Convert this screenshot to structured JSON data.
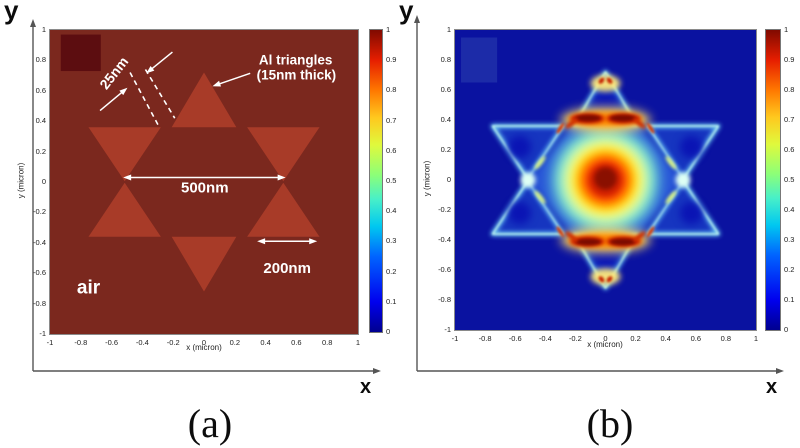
{
  "page": {
    "background": "#ffffff"
  },
  "colormap": {
    "name": "jet",
    "stops": [
      [
        "#00008F",
        0
      ],
      [
        "#0000EE",
        10
      ],
      [
        "#0064FF",
        25
      ],
      [
        "#00C8F0",
        35
      ],
      [
        "#48F0C8",
        44
      ],
      [
        "#8CFF78",
        52
      ],
      [
        "#E0F93C",
        62
      ],
      [
        "#FFC81E",
        71
      ],
      [
        "#FF7800",
        80
      ],
      [
        "#E61E00",
        90
      ],
      [
        "#800A00",
        100
      ]
    ]
  },
  "chart_data": [
    {
      "id": "a",
      "type": "heatmap",
      "caption": "(a)",
      "outer_axis": {
        "x": "x",
        "y": "y"
      },
      "xlabel": "x (micron)",
      "ylabel": "y (micron)",
      "xlim": [
        -1,
        1
      ],
      "ylim": [
        -1,
        1
      ],
      "x_ticks": [
        "-1",
        "-0.8",
        "-0.6",
        "-0.4",
        "-0.2",
        "0",
        "0.2",
        "0.4",
        "0.6",
        "0.8",
        "1"
      ],
      "y_ticks": [
        "1",
        "0.8",
        "0.6",
        "0.4",
        "0.2",
        "0",
        "-0.2",
        "-0.4",
        "-0.6",
        "-0.8",
        "-1"
      ],
      "colorbar_ticks": [
        "1",
        "0.9",
        "0.8",
        "0.7",
        "0.6",
        "0.5",
        "0.4",
        "0.3",
        "0.2",
        "0.1",
        "0"
      ],
      "value_range": [
        0,
        1
      ],
      "colors": {
        "background": "#7B281E",
        "triangle": "#A83B28",
        "corner_patch": "#5C0D10",
        "annotation": "#FFFFFF"
      },
      "corner_patch": {
        "x0": -0.93,
        "x1": -0.67,
        "y0": 0.73,
        "y1": 0.97
      },
      "triangles": [
        [
          [
            -0.21,
            0.36
          ],
          [
            0.21,
            0.36
          ],
          [
            0,
            0.72
          ]
        ],
        [
          [
            -0.21,
            -0.36
          ],
          [
            0.21,
            -0.36
          ],
          [
            0,
            -0.72
          ]
        ],
        [
          [
            -0.75,
            0.36
          ],
          [
            -0.28,
            0.36
          ],
          [
            -0.515,
            0.005
          ]
        ],
        [
          [
            -0.75,
            -0.36
          ],
          [
            -0.28,
            -0.36
          ],
          [
            -0.515,
            -0.005
          ]
        ],
        [
          [
            0.28,
            0.36
          ],
          [
            0.75,
            0.36
          ],
          [
            0.515,
            0.005
          ]
        ],
        [
          [
            0.28,
            -0.36
          ],
          [
            0.75,
            -0.36
          ],
          [
            0.515,
            -0.005
          ]
        ]
      ],
      "annotations": {
        "texts": [
          {
            "text": "25nm",
            "x": -0.56,
            "y": 0.73,
            "size": 14,
            "rot": -52
          },
          {
            "text": "Al triangles",
            "x": 0.595,
            "y": 0.805,
            "size": 13.5,
            "rot": 0
          },
          {
            "text": "(15nm thick)",
            "x": 0.6,
            "y": 0.705,
            "size": 13.5,
            "rot": 0
          },
          {
            "text": "500nm",
            "x": 0.005,
            "y": -0.035,
            "size": 15,
            "rot": 0
          },
          {
            "text": "200nm",
            "x": 0.54,
            "y": -0.565,
            "size": 15,
            "rot": 0
          },
          {
            "text": "air",
            "x": -0.75,
            "y": -0.69,
            "size": 19,
            "rot": 0
          }
        ],
        "dashed_lines": [
          {
            "from": [
              -0.48,
              0.72
            ],
            "to": [
              -0.29,
              0.36
            ]
          },
          {
            "from": [
              -0.38,
              0.74
            ],
            "to": [
              -0.19,
              0.42
            ]
          }
        ],
        "arrows": [
          {
            "from": [
              -0.675,
              0.47
            ],
            "to": [
              -0.497,
              0.62
            ]
          },
          {
            "from": [
              -0.205,
              0.855
            ],
            "to": [
              -0.375,
              0.715
            ]
          },
          {
            "from": [
              0.3,
              0.715
            ],
            "to": [
              0.055,
              0.63
            ]
          }
        ],
        "double_arrows": [
          {
            "from": [
              -0.525,
              0.03
            ],
            "to": [
              0.53,
              0.03
            ]
          },
          {
            "from": [
              0.345,
              -0.39
            ],
            "to": [
              0.735,
              -0.39
            ]
          }
        ]
      },
      "description": "Schematic: six Al triangles (200nm edge, 15nm thick, 25nm gaps, 500nm across) forming a Star-of-David pattern in air; uniform map value 1 (dark red)."
    },
    {
      "id": "b",
      "type": "heatmap",
      "caption": "(b)",
      "outer_axis": {
        "x": "x",
        "y": "y"
      },
      "xlabel": "x (micron)",
      "ylabel": "y (micron)",
      "xlim": [
        -1,
        1
      ],
      "ylim": [
        -1,
        1
      ],
      "x_ticks": [
        "-1",
        "-0.8",
        "-0.6",
        "-0.4",
        "-0.2",
        "0",
        "0.2",
        "0.4",
        "0.6",
        "0.8",
        "1"
      ],
      "y_ticks": [
        "1",
        "0.8",
        "0.6",
        "0.4",
        "0.2",
        "0",
        "-0.2",
        "-0.4",
        "-0.6",
        "-0.8",
        "-1"
      ],
      "colorbar_ticks": [
        "1",
        "0.9",
        "0.8",
        "0.7",
        "0.6",
        "0.5",
        "0.4",
        "0.3",
        "0.2",
        "0.1",
        "0"
      ],
      "value_range": [
        0,
        1
      ],
      "colors": {
        "background": "#0A12A0",
        "corner_patch": "#1C2BA8",
        "star_fill": "#1635C0",
        "edge_glow": "#6FD0F8",
        "edge_bright": "#C8FBF0",
        "inner_hex": "#2B5CDE"
      },
      "corner_patch": {
        "x0": -0.96,
        "x1": -0.72,
        "y0": 0.65,
        "y1": 0.95
      },
      "triangles": [
        [
          [
            -0.21,
            0.36
          ],
          [
            0.21,
            0.36
          ],
          [
            0,
            0.72
          ]
        ],
        [
          [
            -0.21,
            -0.36
          ],
          [
            0.21,
            -0.36
          ],
          [
            0,
            -0.72
          ]
        ],
        [
          [
            -0.75,
            0.36
          ],
          [
            -0.28,
            0.36
          ],
          [
            -0.515,
            0.005
          ]
        ],
        [
          [
            -0.75,
            -0.36
          ],
          [
            -0.28,
            -0.36
          ],
          [
            -0.515,
            -0.005
          ]
        ],
        [
          [
            0.28,
            0.36
          ],
          [
            0.75,
            0.36
          ],
          [
            0.515,
            0.005
          ]
        ],
        [
          [
            0.28,
            -0.36
          ],
          [
            0.75,
            -0.36
          ],
          [
            0.515,
            -0.005
          ]
        ]
      ],
      "hotspots": [
        {
          "x": 0,
          "y": 0,
          "value": 1.0,
          "note": "central circular hot spot"
        },
        {
          "x": 0,
          "y": 0.4,
          "value": 1.0,
          "note": "double-lobed red arc at inner base of top triangle"
        },
        {
          "x": 0,
          "y": -0.4,
          "value": 1.0,
          "note": "double-lobed red arc at inner base of bottom triangle"
        },
        {
          "x": 0,
          "y": 0.66,
          "value": 0.85,
          "note": "spot near top star apex"
        },
        {
          "x": 0,
          "y": -0.66,
          "value": 0.85,
          "note": "spot near bottom star apex"
        },
        {
          "x": -0.51,
          "y": 0,
          "value": 0.5,
          "note": "bright pinch at left bowtie crossing"
        },
        {
          "x": 0.51,
          "y": 0,
          "value": 0.5,
          "note": "bright pinch at right bowtie crossing"
        }
      ],
      "features": [
        {
          "shape": "polygon",
          "points": [
            [
              -0.245,
              0.355
            ],
            [
              0.245,
              0.355
            ],
            [
              0.525,
              0
            ],
            [
              0.245,
              -0.355
            ],
            [
              -0.245,
              -0.355
            ],
            [
              -0.525,
              0
            ]
          ],
          "color": "#2B5CDE",
          "blur": 4,
          "opacity": 0.9
        },
        {
          "shape": "circle",
          "cx": 0,
          "cy": 0.5,
          "r": 0.085,
          "color": "#0A14B4",
          "blur": 4,
          "opacity": 1
        },
        {
          "shape": "circle",
          "cx": 0,
          "cy": -0.5,
          "r": 0.085,
          "color": "#0A14B4",
          "blur": 4,
          "opacity": 1
        },
        {
          "shape": "circle",
          "cx": -0.57,
          "cy": 0.22,
          "r": 0.075,
          "color": "#0A14B4",
          "blur": 4,
          "opacity": 1
        },
        {
          "shape": "circle",
          "cx": -0.57,
          "cy": -0.22,
          "r": 0.075,
          "color": "#0A14B4",
          "blur": 4,
          "opacity": 1
        },
        {
          "shape": "circle",
          "cx": 0.57,
          "cy": 0.22,
          "r": 0.075,
          "color": "#0A14B4",
          "blur": 4,
          "opacity": 1
        },
        {
          "shape": "circle",
          "cx": 0.57,
          "cy": -0.22,
          "r": 0.075,
          "color": "#0A14B4",
          "blur": 4,
          "opacity": 1
        },
        {
          "shape": "circle",
          "cx": 0,
          "cy": 0,
          "r": 0.355,
          "color": "#7FFFD4",
          "blur": 7,
          "opacity": 0.8
        },
        {
          "shape": "circle",
          "cx": 0,
          "cy": 0,
          "r": 0.29,
          "color": "#D9FFAE",
          "blur": 6,
          "opacity": 0.95
        },
        {
          "shape": "circle",
          "cx": 0,
          "cy": 0,
          "r": 0.24,
          "color": "#FFEE4E",
          "blur": 5,
          "opacity": 1
        },
        {
          "shape": "circle",
          "cx": 0,
          "cy": 0,
          "r": 0.195,
          "color": "#FFAE00",
          "blur": 4,
          "opacity": 1
        },
        {
          "shape": "circle",
          "cx": 0,
          "cy": 0,
          "r": 0.155,
          "color": "#FF5A00",
          "blur": 3.5,
          "opacity": 1
        },
        {
          "shape": "circle",
          "cx": 0,
          "cy": 0,
          "r": 0.115,
          "color": "#D22000",
          "blur": 3,
          "opacity": 1
        },
        {
          "shape": "circle",
          "cx": 0,
          "cy": 0.01,
          "r": 0.075,
          "color": "#8A1000",
          "blur": 2.5,
          "opacity": 1
        },
        {
          "shape": "ellipse",
          "cx": 0,
          "cy": 0.4,
          "rx": 0.3,
          "ry": 0.085,
          "rot": 0,
          "color": "#FFE06A",
          "blur": 5,
          "opacity": 0.9
        },
        {
          "shape": "ellipse",
          "cx": 0,
          "cy": 0.405,
          "rx": 0.25,
          "ry": 0.05,
          "rot": 0,
          "color": "#FF8C00",
          "blur": 3,
          "opacity": 1
        },
        {
          "shape": "ellipse",
          "cx": -0.12,
          "cy": 0.41,
          "rx": 0.115,
          "ry": 0.034,
          "rot": 0,
          "color": "#C81800",
          "blur": 2,
          "opacity": 1
        },
        {
          "shape": "ellipse",
          "cx": 0.12,
          "cy": 0.41,
          "rx": 0.115,
          "ry": 0.034,
          "rot": 0,
          "color": "#C81800",
          "blur": 2,
          "opacity": 1
        },
        {
          "shape": "ellipse",
          "cx": -0.115,
          "cy": 0.413,
          "rx": 0.085,
          "ry": 0.022,
          "rot": 0,
          "color": "#7A0C00",
          "blur": 1.5,
          "opacity": 1
        },
        {
          "shape": "ellipse",
          "cx": 0.115,
          "cy": 0.413,
          "rx": 0.085,
          "ry": 0.022,
          "rot": 0,
          "color": "#7A0C00",
          "blur": 1.5,
          "opacity": 1
        },
        {
          "shape": "ellipse",
          "cx": -0.225,
          "cy": 0.378,
          "rx": 0.05,
          "ry": 0.016,
          "rot": -38,
          "color": "#D03000",
          "blur": 1.5,
          "opacity": 1
        },
        {
          "shape": "ellipse",
          "cx": 0.225,
          "cy": 0.378,
          "rx": 0.05,
          "ry": 0.016,
          "rot": 38,
          "color": "#D03000",
          "blur": 1.5,
          "opacity": 1
        },
        {
          "shape": "ellipse",
          "cx": 0,
          "cy": -0.4,
          "rx": 0.3,
          "ry": 0.085,
          "rot": 0,
          "color": "#FFE06A",
          "blur": 5,
          "opacity": 0.9
        },
        {
          "shape": "ellipse",
          "cx": 0,
          "cy": -0.405,
          "rx": 0.25,
          "ry": 0.05,
          "rot": 0,
          "color": "#FF8C00",
          "blur": 3,
          "opacity": 1
        },
        {
          "shape": "ellipse",
          "cx": -0.12,
          "cy": -0.41,
          "rx": 0.115,
          "ry": 0.034,
          "rot": 0,
          "color": "#C81800",
          "blur": 2,
          "opacity": 1
        },
        {
          "shape": "ellipse",
          "cx": 0.12,
          "cy": -0.41,
          "rx": 0.115,
          "ry": 0.034,
          "rot": 0,
          "color": "#C81800",
          "blur": 2,
          "opacity": 1
        },
        {
          "shape": "ellipse",
          "cx": -0.115,
          "cy": -0.413,
          "rx": 0.085,
          "ry": 0.022,
          "rot": 0,
          "color": "#7A0C00",
          "blur": 1.5,
          "opacity": 1
        },
        {
          "shape": "ellipse",
          "cx": 0.115,
          "cy": -0.413,
          "rx": 0.085,
          "ry": 0.022,
          "rot": 0,
          "color": "#7A0C00",
          "blur": 1.5,
          "opacity": 1
        },
        {
          "shape": "ellipse",
          "cx": -0.225,
          "cy": -0.378,
          "rx": 0.05,
          "ry": 0.016,
          "rot": 38,
          "color": "#D03000",
          "blur": 1.5,
          "opacity": 1
        },
        {
          "shape": "ellipse",
          "cx": 0.225,
          "cy": -0.378,
          "rx": 0.05,
          "ry": 0.016,
          "rot": -38,
          "color": "#D03000",
          "blur": 1.5,
          "opacity": 1
        },
        {
          "shape": "ellipse",
          "cx": 0,
          "cy": 0.645,
          "rx": 0.1,
          "ry": 0.055,
          "rot": 0,
          "color": "#FFE87A",
          "blur": 3,
          "opacity": 0.95
        },
        {
          "shape": "ellipse",
          "cx": -0.027,
          "cy": 0.662,
          "rx": 0.024,
          "ry": 0.015,
          "rot": -50,
          "color": "#C42000",
          "blur": 1.2,
          "opacity": 1
        },
        {
          "shape": "ellipse",
          "cx": 0.027,
          "cy": 0.662,
          "rx": 0.024,
          "ry": 0.015,
          "rot": 50,
          "color": "#C42000",
          "blur": 1.2,
          "opacity": 1
        },
        {
          "shape": "ellipse",
          "cx": 0,
          "cy": -0.645,
          "rx": 0.1,
          "ry": 0.055,
          "rot": 0,
          "color": "#FFE87A",
          "blur": 3,
          "opacity": 0.95
        },
        {
          "shape": "ellipse",
          "cx": -0.027,
          "cy": -0.662,
          "rx": 0.024,
          "ry": 0.015,
          "rot": 50,
          "color": "#C42000",
          "blur": 1.2,
          "opacity": 1
        },
        {
          "shape": "ellipse",
          "cx": 0.027,
          "cy": -0.662,
          "rx": 0.024,
          "ry": 0.015,
          "rot": -50,
          "color": "#C42000",
          "blur": 1.2,
          "opacity": 1
        },
        {
          "shape": "circle",
          "cx": -0.515,
          "cy": 0,
          "r": 0.05,
          "color": "#DEFFF4",
          "blur": 2.5,
          "opacity": 1
        },
        {
          "shape": "circle",
          "cx": 0.515,
          "cy": 0,
          "r": 0.05,
          "color": "#DEFFF4",
          "blur": 2.5,
          "opacity": 1
        },
        {
          "shape": "ellipse",
          "cx": -0.435,
          "cy": 0.115,
          "rx": 0.055,
          "ry": 0.014,
          "rot": -51,
          "color": "#E7FF7A",
          "blur": 1.5,
          "opacity": 0.95
        },
        {
          "shape": "ellipse",
          "cx": -0.435,
          "cy": -0.115,
          "rx": 0.055,
          "ry": 0.014,
          "rot": 51,
          "color": "#E7FF7A",
          "blur": 1.5,
          "opacity": 0.95
        },
        {
          "shape": "ellipse",
          "cx": 0.435,
          "cy": 0.115,
          "rx": 0.055,
          "ry": 0.014,
          "rot": 51,
          "color": "#E7FF7A",
          "blur": 1.5,
          "opacity": 0.95
        },
        {
          "shape": "ellipse",
          "cx": 0.435,
          "cy": -0.115,
          "rx": 0.055,
          "ry": 0.014,
          "rot": -51,
          "color": "#E7FF7A",
          "blur": 1.5,
          "opacity": 0.95
        },
        {
          "shape": "ellipse",
          "cx": -0.3,
          "cy": 0.345,
          "rx": 0.042,
          "ry": 0.012,
          "rot": -56,
          "color": "#D83800",
          "blur": 1.2,
          "opacity": 1
        },
        {
          "shape": "ellipse",
          "cx": 0.3,
          "cy": 0.345,
          "rx": 0.042,
          "ry": 0.012,
          "rot": 56,
          "color": "#D83800",
          "blur": 1.2,
          "opacity": 1
        },
        {
          "shape": "ellipse",
          "cx": -0.3,
          "cy": -0.345,
          "rx": 0.042,
          "ry": 0.012,
          "rot": 56,
          "color": "#D83800",
          "blur": 1.2,
          "opacity": 1
        },
        {
          "shape": "ellipse",
          "cx": 0.3,
          "cy": -0.345,
          "rx": 0.042,
          "ry": 0.012,
          "rot": -56,
          "color": "#D83800",
          "blur": 1.2,
          "opacity": 1
        }
      ],
      "description": "Normalized near-field intensity of the Al triangle star: hexagram outline glows cyan (~0.3) over a dark blue background (~0), with red hot spots (~1) at the center and at the inner triangle bases."
    }
  ]
}
